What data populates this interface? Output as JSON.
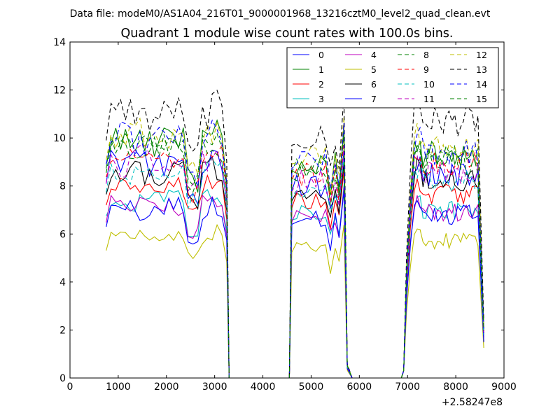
{
  "chart_data": {
    "type": "line",
    "suptitle": "Data file: modeM0/AS1A04_216T01_9000001968_13216cztM0_level2_quad_clean.evt",
    "title": "Quadrant 1 module wise count rates with 100.0s bins.",
    "xlabel": "",
    "ylabel": "",
    "xlim": [
      0,
      9000
    ],
    "ylim": [
      0,
      14
    ],
    "x_offset_label": "+2.58247e8",
    "xticks": [
      0,
      1000,
      2000,
      3000,
      4000,
      5000,
      6000,
      7000,
      8000,
      9000
    ],
    "xtick_labels": [
      "0",
      "1000",
      "2000",
      "3000",
      "4000",
      "5000",
      "6000",
      "7000",
      "8000",
      "9000"
    ],
    "yticks": [
      0,
      2,
      4,
      6,
      8,
      10,
      12,
      14
    ],
    "ytick_labels": [
      "0",
      "2",
      "4",
      "6",
      "8",
      "10",
      "12",
      "14"
    ],
    "grid": false,
    "legend_position": "top-right",
    "segments": [
      {
        "start": 750,
        "end": 3250
      },
      {
        "start": 4600,
        "end": 5680
      },
      {
        "start": 6920,
        "end": 8580
      }
    ],
    "series": [
      {
        "name": "0",
        "color": "#0000ff",
        "style": "solid",
        "levels": [
          9.0,
          8.0,
          8.5
        ]
      },
      {
        "name": "1",
        "color": "#008000",
        "style": "solid",
        "levels": [
          9.9,
          8.9,
          9.3
        ]
      },
      {
        "name": "2",
        "color": "#ff0000",
        "style": "solid",
        "levels": [
          8.0,
          7.3,
          7.7
        ]
      },
      {
        "name": "3",
        "color": "#00bfbf",
        "style": "solid",
        "levels": [
          7.5,
          6.8,
          7.0
        ]
      },
      {
        "name": "4",
        "color": "#bf00bf",
        "style": "solid",
        "levels": [
          7.2,
          6.7,
          6.9
        ]
      },
      {
        "name": "5",
        "color": "#bfbf00",
        "style": "solid",
        "levels": [
          5.9,
          5.4,
          5.7
        ]
      },
      {
        "name": "6",
        "color": "#000000",
        "style": "solid",
        "levels": [
          8.5,
          7.6,
          8.2
        ]
      },
      {
        "name": "7",
        "color": "#0000ff",
        "style": "solid",
        "levels": [
          7.0,
          6.6,
          6.8
        ]
      },
      {
        "name": "8",
        "color": "#008000",
        "style": "dashed",
        "levels": [
          9.7,
          8.8,
          9.2
        ]
      },
      {
        "name": "9",
        "color": "#ff0000",
        "style": "dashed",
        "levels": [
          9.3,
          8.5,
          8.9
        ]
      },
      {
        "name": "10",
        "color": "#00bfbf",
        "style": "dashed",
        "levels": [
          8.6,
          7.8,
          8.2
        ]
      },
      {
        "name": "11",
        "color": "#bf00bf",
        "style": "dashed",
        "levels": [
          9.0,
          8.2,
          8.6
        ]
      },
      {
        "name": "12",
        "color": "#bfbf00",
        "style": "dashed",
        "levels": [
          10.1,
          9.2,
          9.6
        ]
      },
      {
        "name": "13",
        "color": "#000000",
        "style": "dashed",
        "levels": [
          11.0,
          10.0,
          10.7
        ]
      },
      {
        "name": "14",
        "color": "#0000ff",
        "style": "dashed",
        "levels": [
          9.9,
          9.0,
          9.4
        ]
      },
      {
        "name": "15",
        "color": "#008000",
        "style": "dashed",
        "levels": [
          9.5,
          8.6,
          9.0
        ]
      }
    ]
  }
}
